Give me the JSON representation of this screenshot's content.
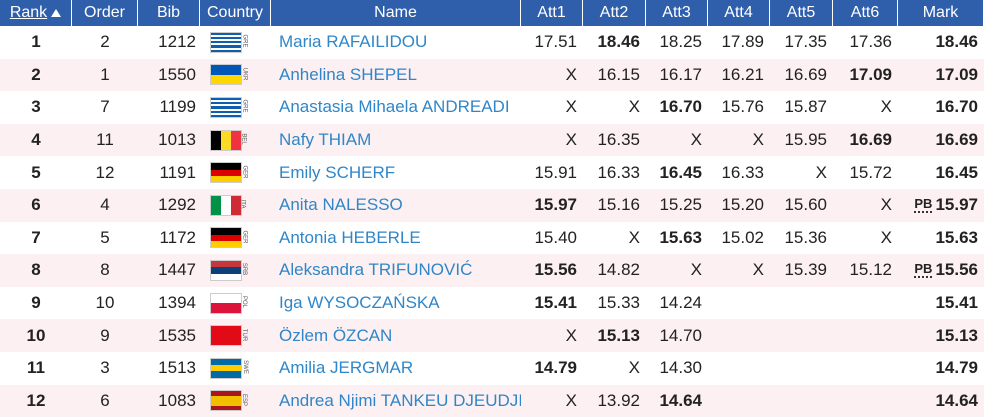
{
  "header": {
    "columns": [
      "Rank",
      "Order",
      "Bib",
      "Country",
      "Name",
      "Att1",
      "Att2",
      "Att3",
      "Att4",
      "Att5",
      "Att6",
      "Mark"
    ]
  },
  "rows": [
    {
      "rank": "1",
      "order": 2,
      "bib": 1212,
      "country": "GRE",
      "flag": {
        "dir": "h",
        "colors": [
          "#0d5eaf",
          "#ffffff",
          "#0d5eaf",
          "#ffffff",
          "#0d5eaf",
          "#ffffff",
          "#0d5eaf",
          "#ffffff",
          "#0d5eaf"
        ]
      },
      "name": "Maria RAFAILIDOU",
      "attempts": [
        "17.51",
        "18.46",
        "18.25",
        "17.89",
        "17.35",
        "17.36"
      ],
      "best": 1,
      "mark": "18.46"
    },
    {
      "rank": "2",
      "order": 1,
      "bib": 1550,
      "country": "UKR",
      "flag": {
        "dir": "h",
        "colors": [
          "#0057b7",
          "#ffd700"
        ]
      },
      "name": "Anhelina SHEPEL",
      "attempts": [
        "X",
        "16.15",
        "16.17",
        "16.21",
        "16.69",
        "17.09"
      ],
      "best": 5,
      "mark": "17.09"
    },
    {
      "rank": "3",
      "order": 7,
      "bib": 1199,
      "country": "GRE",
      "flag": {
        "dir": "h",
        "colors": [
          "#0d5eaf",
          "#ffffff",
          "#0d5eaf",
          "#ffffff",
          "#0d5eaf",
          "#ffffff",
          "#0d5eaf",
          "#ffffff",
          "#0d5eaf"
        ]
      },
      "name": "Anastasia Mihaela ANDREADI",
      "attempts": [
        "X",
        "X",
        "16.70",
        "15.76",
        "15.87",
        "X"
      ],
      "best": 2,
      "mark": "16.70"
    },
    {
      "rank": "4",
      "order": 11,
      "bib": 1013,
      "country": "BEL",
      "flag": {
        "dir": "v",
        "colors": [
          "#000000",
          "#fdda24",
          "#ef3340"
        ]
      },
      "name": "Nafy THIAM",
      "attempts": [
        "X",
        "16.35",
        "X",
        "X",
        "15.95",
        "16.69"
      ],
      "best": 5,
      "mark": "16.69"
    },
    {
      "rank": "5",
      "order": 12,
      "bib": 1191,
      "country": "GER",
      "flag": {
        "dir": "h",
        "colors": [
          "#000000",
          "#dd0000",
          "#ffce00"
        ]
      },
      "name": "Emily SCHERF",
      "attempts": [
        "15.91",
        "16.33",
        "16.45",
        "16.33",
        "X",
        "15.72"
      ],
      "best": 2,
      "mark": "16.45"
    },
    {
      "rank": "6",
      "order": 4,
      "bib": 1292,
      "country": "ITA",
      "flag": {
        "dir": "v",
        "colors": [
          "#009246",
          "#ffffff",
          "#ce2b37"
        ]
      },
      "name": "Anita NALESSO",
      "attempts": [
        "15.97",
        "15.16",
        "15.25",
        "15.20",
        "15.60",
        "X"
      ],
      "best": 0,
      "mark_note": "PB",
      "mark": "15.97"
    },
    {
      "rank": "7",
      "order": 5,
      "bib": 1172,
      "country": "GER",
      "flag": {
        "dir": "h",
        "colors": [
          "#000000",
          "#dd0000",
          "#ffce00"
        ]
      },
      "name": "Antonia HEBERLE",
      "attempts": [
        "15.40",
        "X",
        "15.63",
        "15.02",
        "15.36",
        "X"
      ],
      "best": 2,
      "mark": "15.63"
    },
    {
      "rank": "8",
      "order": 8,
      "bib": 1447,
      "country": "SRB",
      "flag": {
        "dir": "h",
        "colors": [
          "#c6363c",
          "#0c4076",
          "#ffffff"
        ]
      },
      "name": "Aleksandra TRIFUNOVIĆ",
      "attempts": [
        "15.56",
        "14.82",
        "X",
        "X",
        "15.39",
        "15.12"
      ],
      "best": 0,
      "mark_note": "PB",
      "mark": "15.56"
    },
    {
      "rank": "9",
      "order": 10,
      "bib": 1394,
      "country": "POL",
      "flag": {
        "dir": "h",
        "colors": [
          "#ffffff",
          "#dc143c"
        ]
      },
      "name": "Iga WYSOCZAŃSKA",
      "attempts": [
        "15.41",
        "15.33",
        "14.24"
      ],
      "best": 0,
      "mark": "15.41"
    },
    {
      "rank": "10",
      "order": 9,
      "bib": 1535,
      "country": "TUR",
      "flag": {
        "dir": "h",
        "colors": [
          "#e30a17"
        ]
      },
      "name": "Özlem ÖZCAN",
      "attempts": [
        "X",
        "15.13",
        "14.70"
      ],
      "best": 1,
      "mark": "15.13"
    },
    {
      "rank": "11",
      "order": 3,
      "bib": 1513,
      "country": "SWE",
      "flag": {
        "dir": "h",
        "colors": [
          "#006aa7",
          "#fecc00",
          "#006aa7"
        ]
      },
      "name": "Amilia JERGMAR",
      "attempts": [
        "14.79",
        "X",
        "14.30"
      ],
      "best": 0,
      "mark": "14.79"
    },
    {
      "rank": "12",
      "order": 6,
      "bib": 1083,
      "country": "ESP",
      "flag": {
        "dir": "h",
        "colors": [
          "#aa151b",
          "#f1bf00",
          "#f1bf00",
          "#aa151b"
        ]
      },
      "name": "Andrea Njimi TANKEU DJEUDJI",
      "attempts": [
        "X",
        "13.92",
        "14.64"
      ],
      "best": 2,
      "mark": "14.64"
    }
  ]
}
